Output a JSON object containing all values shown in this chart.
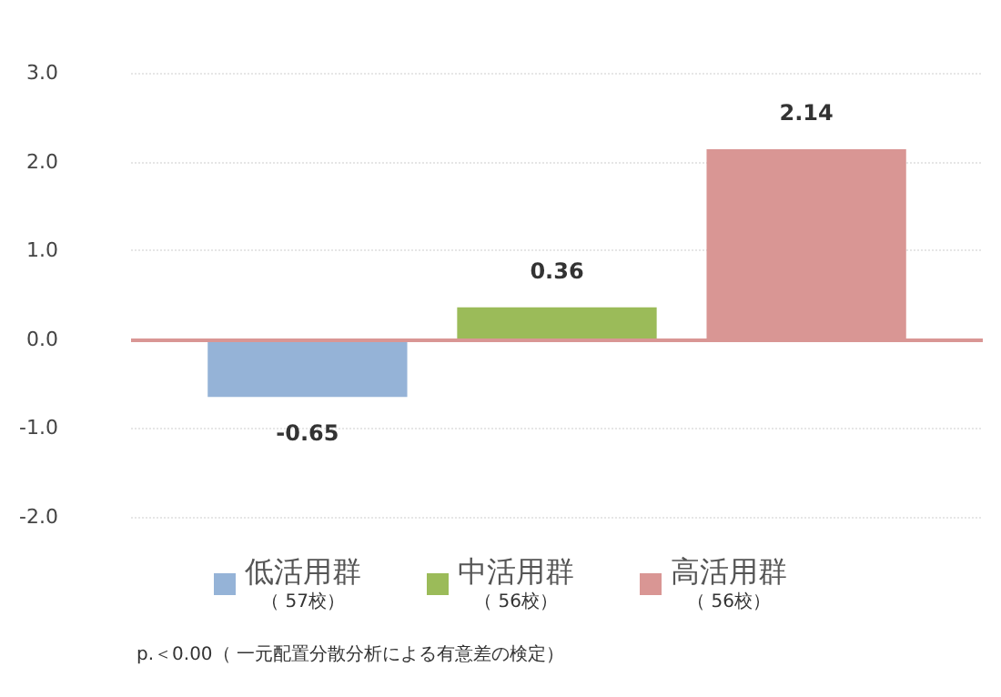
{
  "chart_data": {
    "type": "bar",
    "categories": [
      null
    ],
    "series": [
      {
        "name": "低活用群（ 57校）",
        "color": "#95b3d7",
        "values": [
          -0.65
        ]
      },
      {
        "name": "中活用群（ 56校）",
        "color": "#9bbb59",
        "values": [
          0.36
        ]
      },
      {
        "name": "高活用群（ 56校）",
        "color": "#d99694",
        "values": [
          2.14
        ]
      }
    ],
    "ylim": [
      -2,
      3
    ],
    "yticks": [
      {
        "value": -2,
        "label": "-2.0"
      },
      {
        "value": -1,
        "label": "-1.0"
      },
      {
        "value": 0,
        "label": "0.0"
      },
      {
        "value": 1,
        "label": "1.0"
      },
      {
        "value": 2,
        "label": "2.0"
      },
      {
        "value": 3,
        "label": "3.0"
      }
    ],
    "ref_lines": [
      {
        "axis": "y",
        "value": 0,
        "color": "#d99694"
      }
    ],
    "data_labels": true,
    "grid": "y",
    "legend": "bottom",
    "annotations": [
      "p.＜0.00（ 一元配置分散分析による有意差の検定）"
    ]
  }
}
